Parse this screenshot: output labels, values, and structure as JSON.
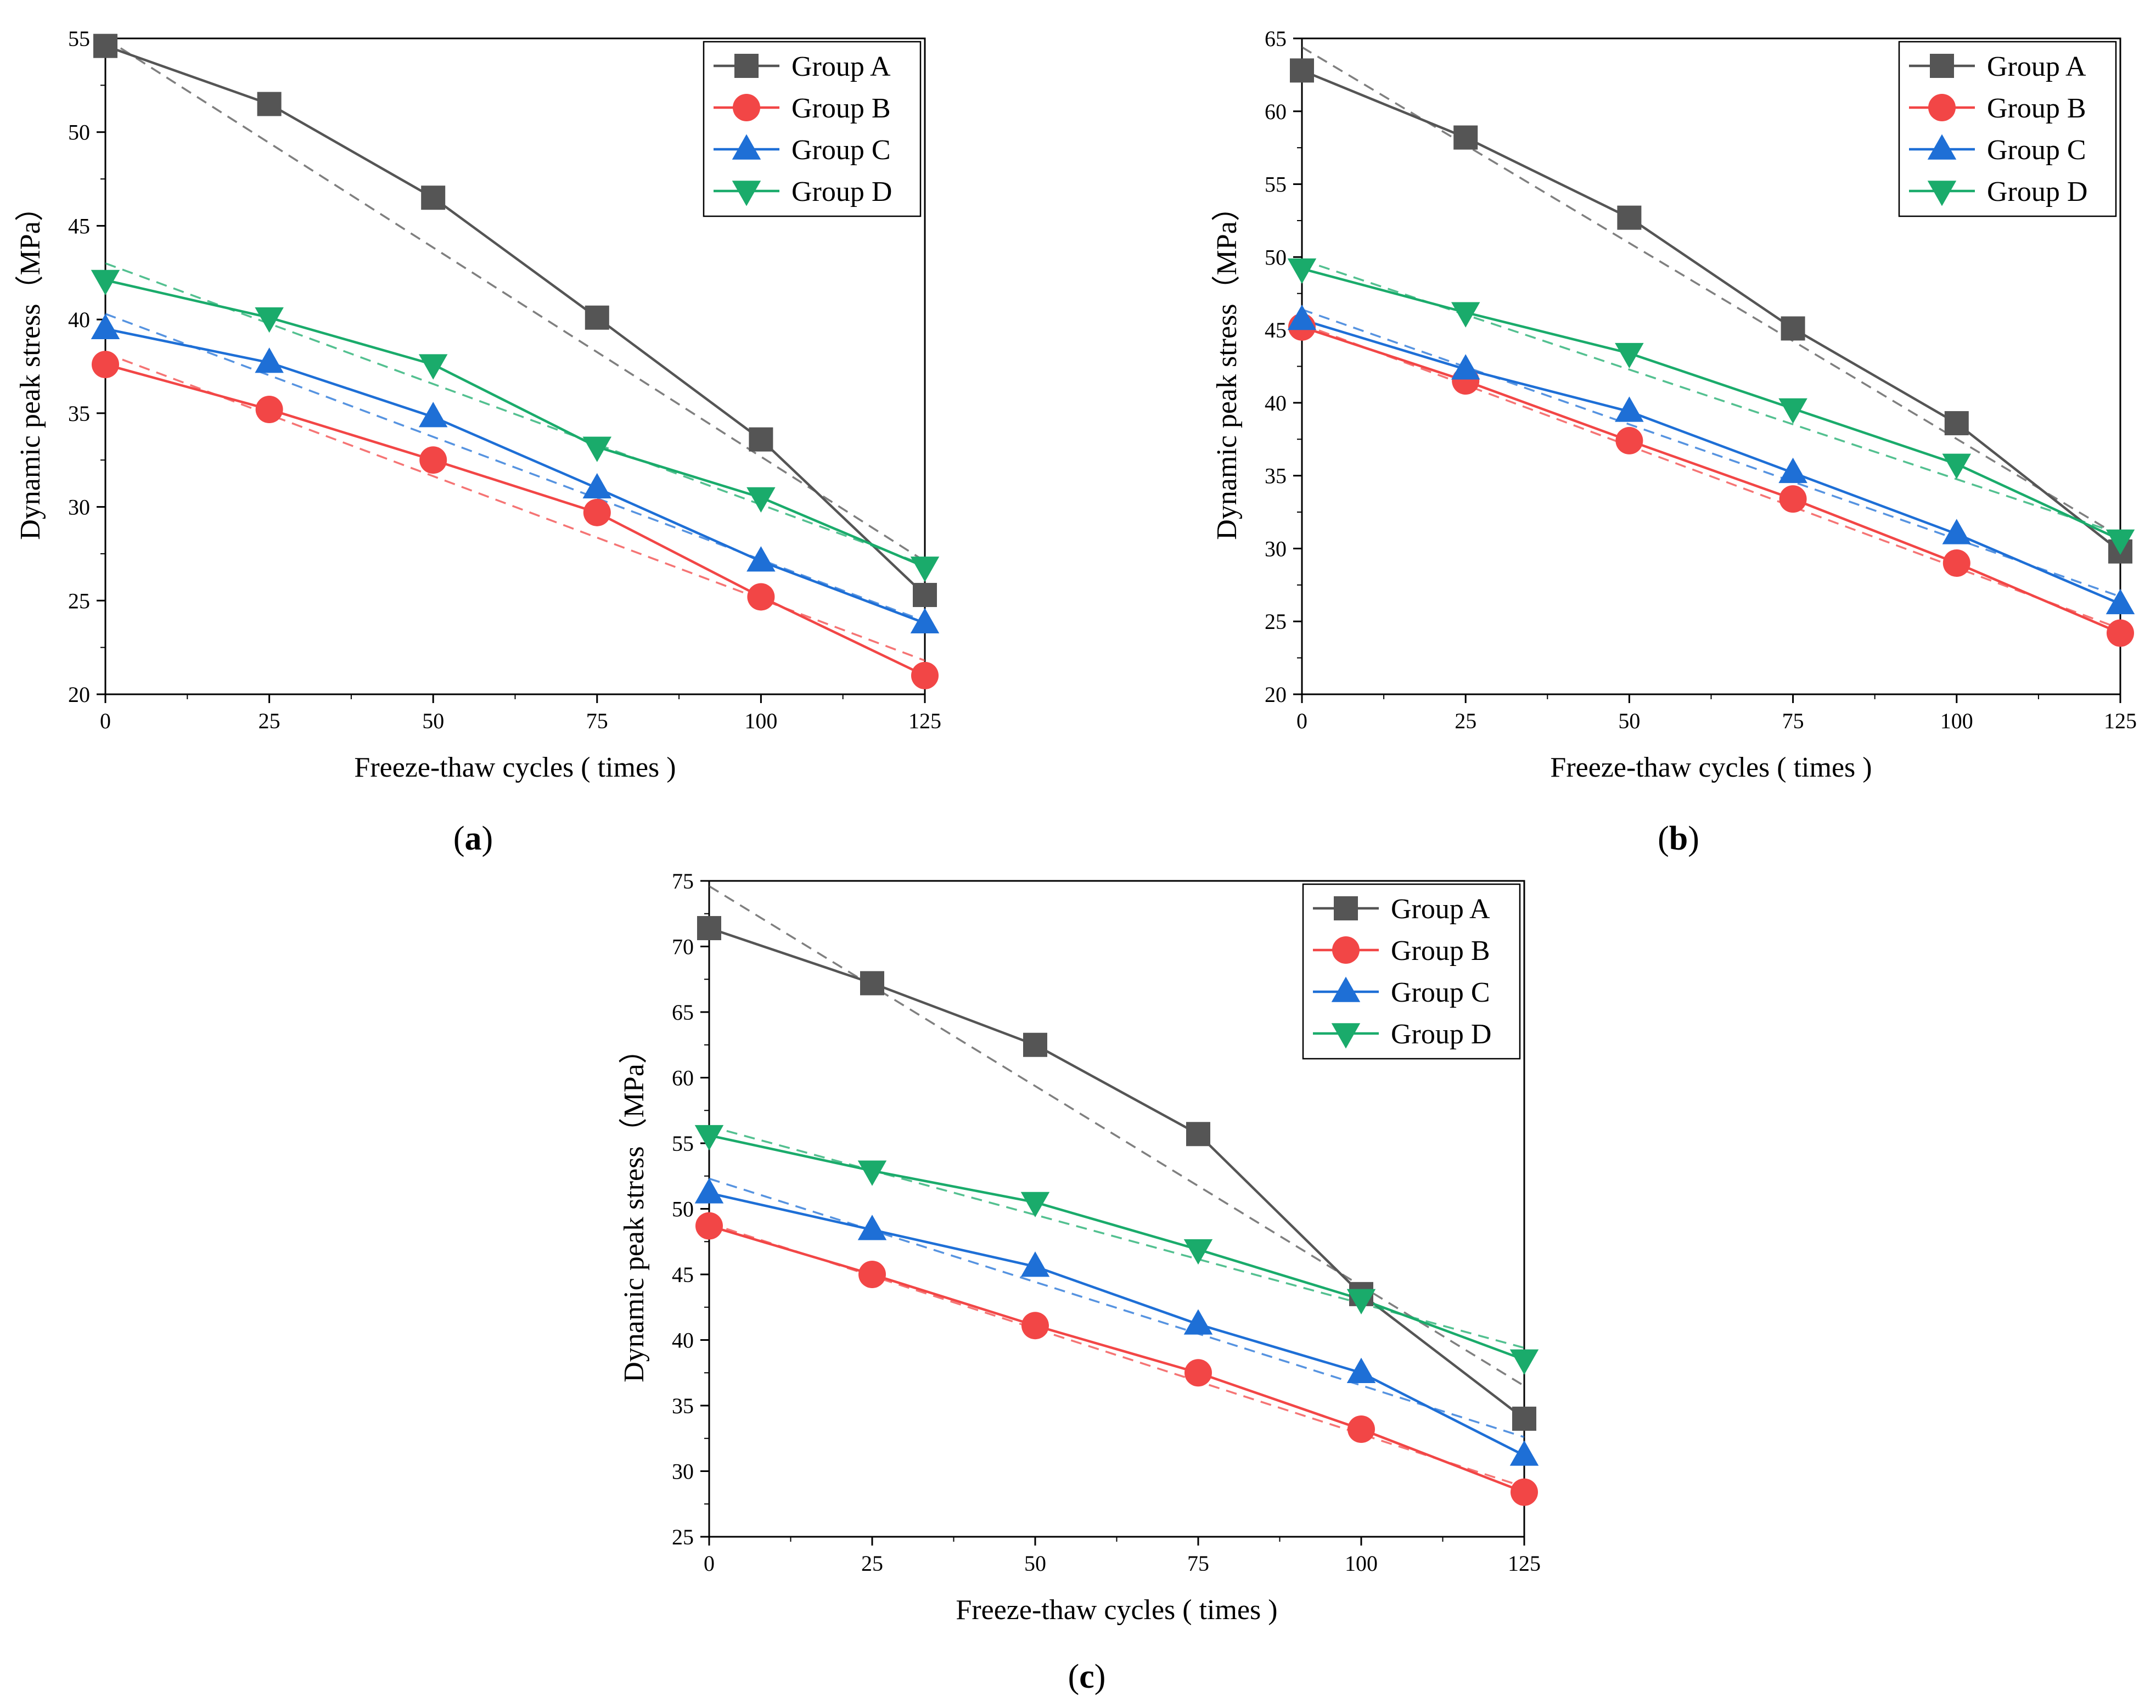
{
  "figure": {
    "panel_labels": [
      "(a)",
      "(b)",
      "(c)"
    ]
  },
  "chart_data": [
    {
      "type": "line",
      "panel": "a",
      "xlabel": "Freeze-thaw cycles ( times )",
      "ylabel": "Dynamic peak stress（MPa）",
      "x": [
        0,
        25,
        50,
        75,
        100,
        125
      ],
      "xlim": [
        0,
        125
      ],
      "ylim": [
        20,
        55
      ],
      "xticks": [
        0,
        25,
        50,
        75,
        100,
        125
      ],
      "yticks": [
        20,
        25,
        30,
        35,
        40,
        45,
        50,
        55
      ],
      "legend_position": "top-right",
      "grid": false,
      "series": [
        {
          "name": "Group A",
          "marker": "square",
          "color": "#555555",
          "values": [
            54.6,
            51.5,
            46.5,
            40.1,
            33.6,
            25.3
          ],
          "trend": [
            55.0,
            27.1
          ]
        },
        {
          "name": "Group B",
          "marker": "circle",
          "color": "#f24646",
          "values": [
            37.6,
            35.2,
            32.5,
            29.7,
            25.2,
            21.0
          ],
          "trend": [
            38.2,
            21.8
          ]
        },
        {
          "name": "Group C",
          "marker": "triangle-up",
          "color": "#1e6fd6",
          "values": [
            39.5,
            37.7,
            34.8,
            31.0,
            27.1,
            23.8
          ],
          "trend": [
            40.3,
            23.9
          ]
        },
        {
          "name": "Group D",
          "marker": "triangle-down",
          "color": "#1aab6b",
          "values": [
            42.1,
            40.1,
            37.6,
            33.2,
            30.5,
            26.8
          ],
          "trend": [
            43.0,
            26.9
          ]
        }
      ]
    },
    {
      "type": "line",
      "panel": "b",
      "xlabel": "Freeze-thaw cycles ( times )",
      "ylabel": "Dynamic peak stress（MPa）",
      "x": [
        0,
        25,
        50,
        75,
        100,
        125
      ],
      "xlim": [
        0,
        125
      ],
      "ylim": [
        20,
        65
      ],
      "xticks": [
        0,
        25,
        50,
        75,
        100,
        125
      ],
      "yticks": [
        20,
        25,
        30,
        35,
        40,
        45,
        50,
        55,
        60,
        65
      ],
      "legend_position": "top-right",
      "grid": false,
      "series": [
        {
          "name": "Group A",
          "marker": "square",
          "color": "#555555",
          "values": [
            62.8,
            58.2,
            52.7,
            45.1,
            38.6,
            29.8
          ],
          "trend": [
            64.4,
            30.8
          ]
        },
        {
          "name": "Group B",
          "marker": "circle",
          "color": "#f24646",
          "values": [
            45.2,
            41.5,
            37.4,
            33.4,
            29.0,
            24.2
          ],
          "trend": [
            45.4,
            24.5
          ]
        },
        {
          "name": "Group C",
          "marker": "triangle-up",
          "color": "#1e6fd6",
          "values": [
            45.7,
            42.3,
            39.4,
            35.2,
            31.0,
            26.2
          ],
          "trend": [
            46.4,
            26.7
          ]
        },
        {
          "name": "Group D",
          "marker": "triangle-down",
          "color": "#1aab6b",
          "values": [
            49.2,
            46.2,
            43.4,
            39.6,
            35.8,
            30.6
          ],
          "trend": [
            49.8,
            31.0
          ]
        }
      ]
    },
    {
      "type": "line",
      "panel": "c",
      "xlabel": "Freeze-thaw cycles ( times )",
      "ylabel": "Dynamic peak stress（MPa）",
      "x": [
        0,
        25,
        50,
        75,
        100,
        125
      ],
      "xlim": [
        0,
        125
      ],
      "ylim": [
        25,
        75
      ],
      "xticks": [
        0,
        25,
        50,
        75,
        100,
        125
      ],
      "yticks": [
        25,
        30,
        35,
        40,
        45,
        50,
        55,
        60,
        65,
        70,
        75
      ],
      "legend_position": "top-right",
      "grid": false,
      "series": [
        {
          "name": "Group A",
          "marker": "square",
          "color": "#555555",
          "values": [
            71.4,
            67.2,
            62.5,
            55.7,
            43.5,
            34.0
          ],
          "trend": [
            74.6,
            36.5
          ]
        },
        {
          "name": "Group B",
          "marker": "circle",
          "color": "#f24646",
          "values": [
            48.7,
            45.0,
            41.1,
            37.5,
            33.2,
            28.4
          ],
          "trend": [
            48.9,
            28.8
          ]
        },
        {
          "name": "Group C",
          "marker": "triangle-up",
          "color": "#1e6fd6",
          "values": [
            51.2,
            48.4,
            45.6,
            41.2,
            37.5,
            31.2
          ],
          "trend": [
            52.3,
            32.6
          ]
        },
        {
          "name": "Group D",
          "marker": "triangle-down",
          "color": "#1aab6b",
          "values": [
            55.6,
            52.9,
            50.5,
            46.9,
            43.1,
            38.5
          ],
          "trend": [
            56.3,
            39.4
          ]
        }
      ]
    }
  ]
}
